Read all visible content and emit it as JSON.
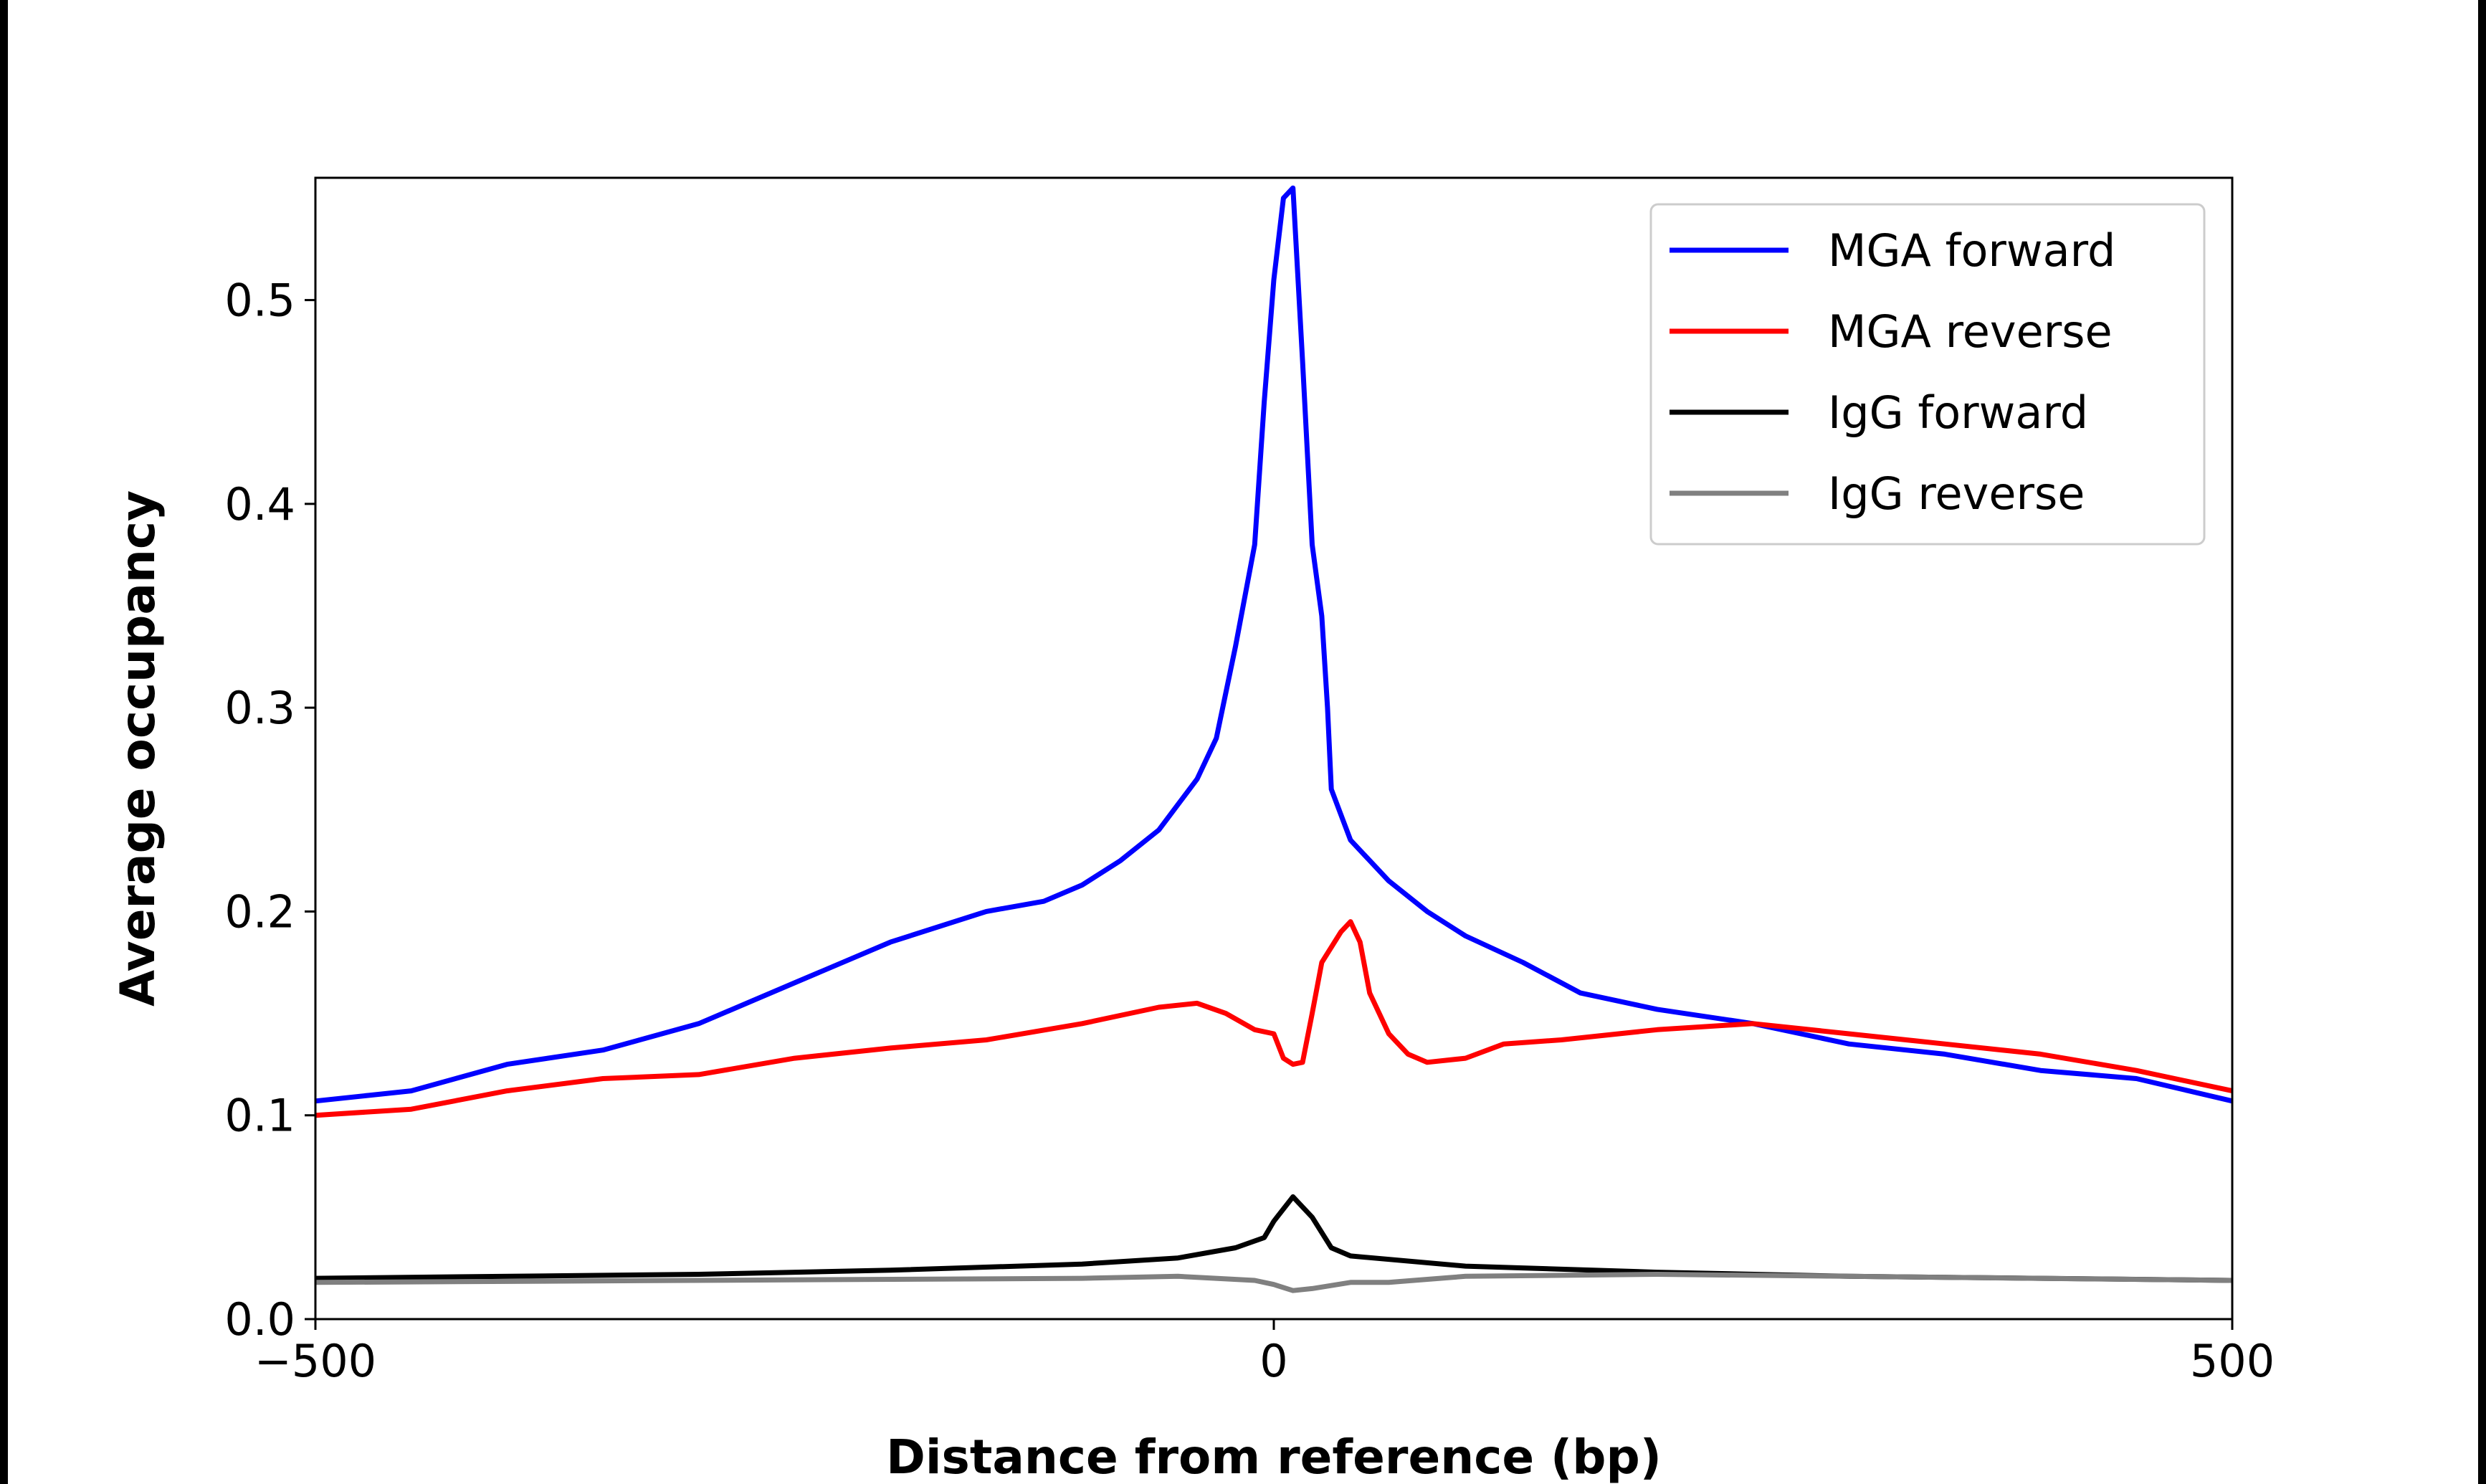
{
  "chart_data": {
    "type": "line",
    "title": "",
    "xlabel": "Distance from reference (bp)",
    "ylabel": "Average occupancy",
    "xlim": [
      -500,
      500
    ],
    "ylim": [
      0,
      0.56
    ],
    "xticks": [
      -500,
      0,
      500
    ],
    "xtick_labels": [
      "−500",
      "0",
      "500"
    ],
    "yticks": [
      0.0,
      0.1,
      0.2,
      0.3,
      0.4,
      0.5
    ],
    "ytick_labels": [
      "0.0",
      "0.1",
      "0.2",
      "0.3",
      "0.4",
      "0.5"
    ],
    "grid": false,
    "legend_position": "top-right",
    "series": [
      {
        "name": "MGA forward",
        "color": "#0000ff",
        "x": [
          -500,
          -450,
          -400,
          -350,
          -300,
          -250,
          -200,
          -150,
          -120,
          -100,
          -80,
          -60,
          -40,
          -30,
          -20,
          -10,
          -5,
          0,
          5,
          10,
          15,
          20,
          25,
          28,
          30,
          40,
          60,
          80,
          100,
          130,
          160,
          200,
          250,
          300,
          350,
          400,
          450,
          500
        ],
        "y": [
          0.107,
          0.112,
          0.125,
          0.132,
          0.145,
          0.165,
          0.185,
          0.2,
          0.205,
          0.213,
          0.225,
          0.24,
          0.265,
          0.285,
          0.33,
          0.38,
          0.45,
          0.51,
          0.55,
          0.555,
          0.47,
          0.38,
          0.345,
          0.3,
          0.26,
          0.235,
          0.215,
          0.2,
          0.188,
          0.175,
          0.16,
          0.152,
          0.145,
          0.135,
          0.13,
          0.122,
          0.118,
          0.107
        ]
      },
      {
        "name": "MGA reverse",
        "color": "#ff0000",
        "x": [
          -500,
          -450,
          -400,
          -350,
          -300,
          -250,
          -200,
          -150,
          -100,
          -60,
          -40,
          -25,
          -10,
          0,
          5,
          10,
          15,
          20,
          25,
          35,
          40,
          45,
          50,
          60,
          70,
          80,
          100,
          120,
          150,
          200,
          250,
          300,
          350,
          400,
          450,
          500
        ],
        "y": [
          0.1,
          0.103,
          0.112,
          0.118,
          0.12,
          0.128,
          0.133,
          0.137,
          0.145,
          0.153,
          0.155,
          0.15,
          0.142,
          0.14,
          0.128,
          0.125,
          0.126,
          0.15,
          0.175,
          0.19,
          0.195,
          0.185,
          0.16,
          0.14,
          0.13,
          0.126,
          0.128,
          0.135,
          0.137,
          0.142,
          0.145,
          0.14,
          0.135,
          0.13,
          0.122,
          0.112
        ]
      },
      {
        "name": "IgG forward",
        "color": "#000000",
        "x": [
          -500,
          -300,
          -200,
          -100,
          -50,
          -20,
          -5,
          0,
          10,
          20,
          30,
          40,
          100,
          200,
          300,
          400,
          500
        ],
        "y": [
          0.02,
          0.022,
          0.024,
          0.027,
          0.03,
          0.035,
          0.04,
          0.048,
          0.06,
          0.05,
          0.035,
          0.031,
          0.026,
          0.023,
          0.021,
          0.02,
          0.019
        ]
      },
      {
        "name": "IgG reverse",
        "color": "#808080",
        "x": [
          -500,
          -100,
          -50,
          -10,
          0,
          10,
          20,
          40,
          60,
          100,
          200,
          300,
          500
        ],
        "y": [
          0.018,
          0.02,
          0.021,
          0.019,
          0.017,
          0.014,
          0.015,
          0.018,
          0.018,
          0.021,
          0.022,
          0.021,
          0.019
        ]
      }
    ]
  }
}
